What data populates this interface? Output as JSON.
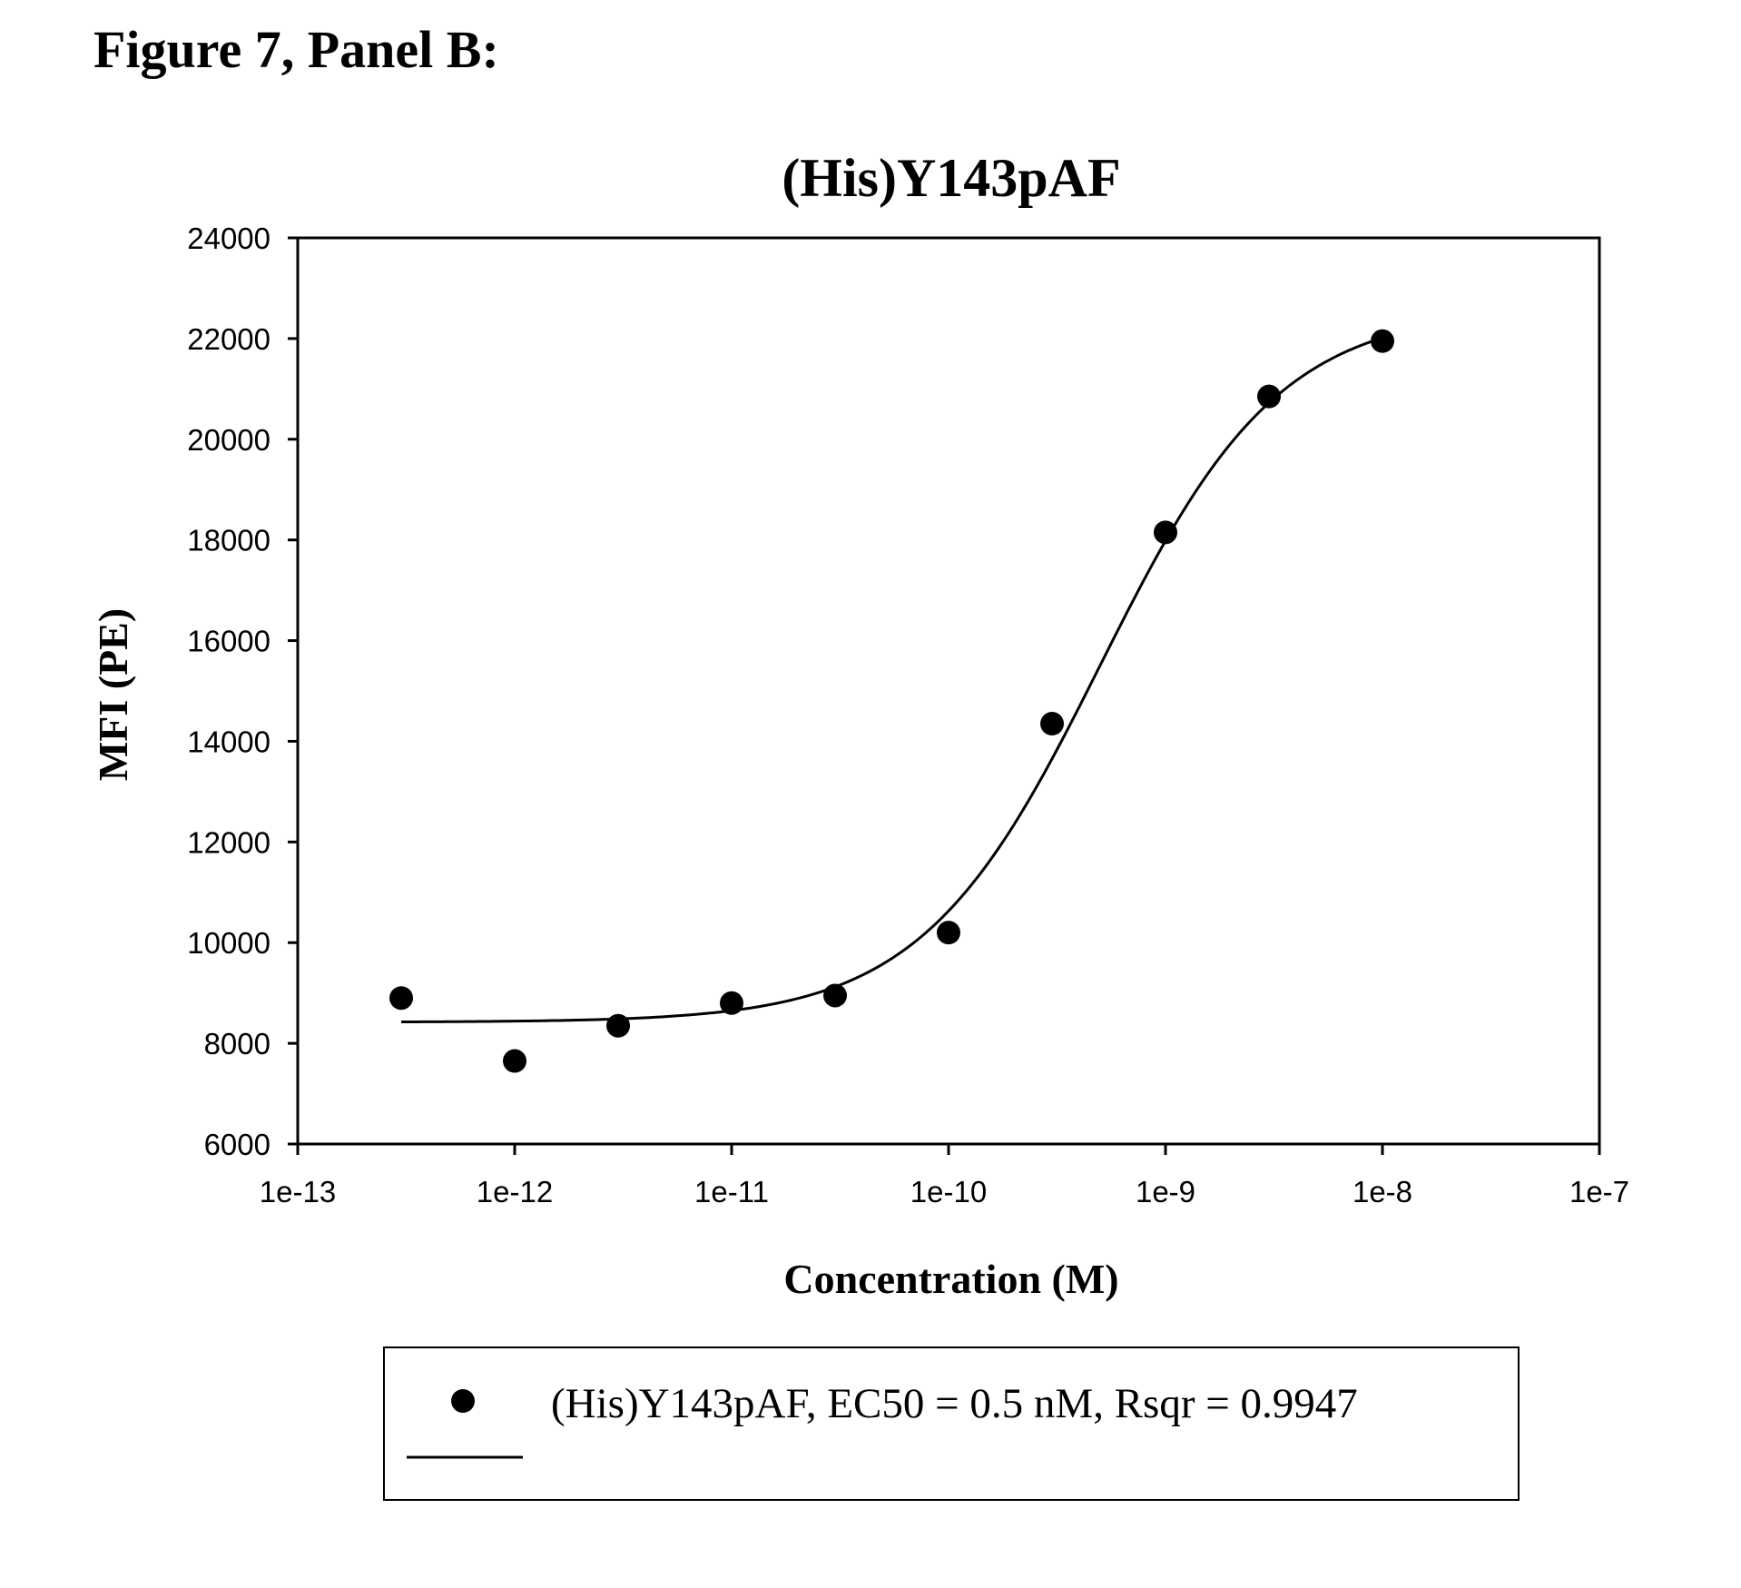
{
  "figure_heading": "Figure 7, Panel B:",
  "chart_data": {
    "type": "scatter",
    "title": "(His)Y143pAF",
    "xlabel": "Concentration (M)",
    "ylabel": "MFI (PE)",
    "x_scale": "log",
    "xlim": [
      1e-13,
      1e-07
    ],
    "ylim": [
      6000,
      24000
    ],
    "x_ticks": [
      1e-13,
      1e-12,
      1e-11,
      1e-10,
      1e-09,
      1e-08,
      1e-07
    ],
    "x_tick_labels": [
      "1e-13",
      "1e-12",
      "1e-11",
      "1e-10",
      "1e-9",
      "1e-8",
      "1e-7"
    ],
    "y_ticks": [
      6000,
      8000,
      10000,
      12000,
      14000,
      16000,
      18000,
      20000,
      22000,
      24000
    ],
    "y_tick_labels": [
      "6000",
      "8000",
      "10000",
      "12000",
      "14000",
      "16000",
      "18000",
      "20000",
      "22000",
      "24000"
    ],
    "grid": false,
    "legend_position": "bottom",
    "series": [
      {
        "name": "(His)Y143pAF, EC50 = 0.5 nM, Rsqr = 0.9947",
        "marker": "circle",
        "color": "#000000",
        "x": [
          3e-13,
          1e-12,
          3e-12,
          1e-11,
          3e-11,
          1e-10,
          3e-10,
          1e-09,
          3e-09,
          1e-08
        ],
        "y": [
          8900,
          7650,
          8350,
          8800,
          8950,
          10200,
          14350,
          18150,
          20850,
          21950
        ]
      }
    ],
    "fit": {
      "x_range": [
        3e-13,
        1e-08
      ],
      "bottom": 8420,
      "top": 22600,
      "ec50": 5e-10,
      "hill_slope": 1.05
    }
  }
}
